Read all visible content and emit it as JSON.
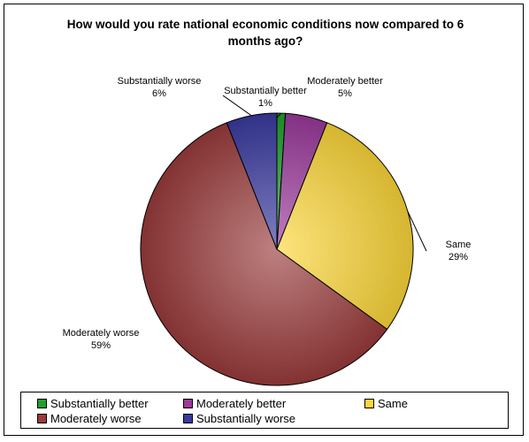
{
  "chart_data": {
    "type": "pie",
    "title": "How would you rate national economic conditions now compared to 6 months ago?",
    "categories": [
      "Substantially better",
      "Moderately better",
      "Same",
      "Moderately worse",
      "Substantially worse"
    ],
    "values": [
      1,
      5,
      29,
      59,
      6
    ],
    "value_labels": [
      "1%",
      "5%",
      "29%",
      "59%",
      "6%"
    ],
    "colors": [
      "#1fa02c",
      "#9b3a9b",
      "#fcd638",
      "#9a3b3b",
      "#3a3aa0"
    ],
    "legend": {
      "position": "bottom"
    }
  }
}
